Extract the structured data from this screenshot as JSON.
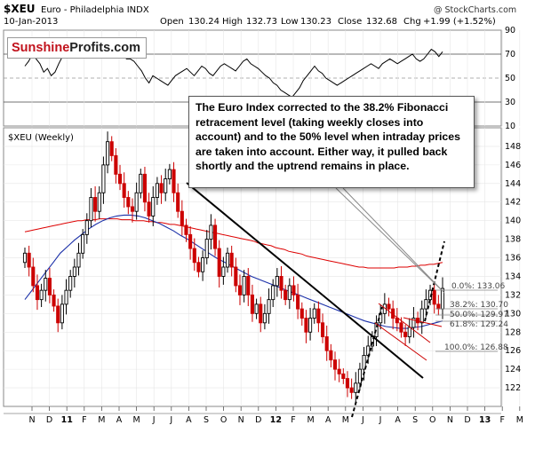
{
  "header": {
    "symbol": "$XEU",
    "name": "Euro - Philadelphia INDX",
    "date": "10-Jan-2013",
    "open_label": "Open",
    "open": "130.24",
    "high_label": "High",
    "high": "132.73",
    "low_label": "Low",
    "low": "130.23",
    "close_label": "Close",
    "close": "132.68",
    "chg_label": "Chg",
    "chg": "+1.99 (+1.52%)",
    "watermark": "@ StockCharts.com"
  },
  "logo": {
    "part1": "Sunshine",
    "part2": "Profits",
    "part3": ".com"
  },
  "callout": "The Euro Index corrected to the 38.2% Fibonacci retracement level (taking weekly closes into account) and to the 50% level when intraday prices are taken into account. Either way, it pulled back shortly and the uptrend remains in place.",
  "main_label": "$XEU (Weekly)",
  "fib_labels": [
    "0.0%: 133.06",
    "38.2%: 130.70",
    "50.0%: 129.97",
    "61.8%: 129.24",
    "100.0%: 126.88"
  ],
  "colors": {
    "up": "#000000",
    "down": "#cc0000",
    "ma_red": "#dd0000",
    "ma_blue": "#1a2fa8",
    "rsi_line": "#000000"
  },
  "chart_data": [
    {
      "type": "line",
      "title": "",
      "x_ticks": [
        "N",
        "D",
        "11",
        "F",
        "M",
        "A",
        "M",
        "J",
        "J",
        "A",
        "S",
        "O",
        "N",
        "D",
        "12",
        "F",
        "M",
        "A",
        "M",
        "J",
        "J",
        "A",
        "S",
        "O",
        "N",
        "D",
        "13",
        "F",
        "M"
      ],
      "ylim": [
        10,
        90
      ],
      "y_ticks": [
        10,
        30,
        50,
        70,
        90
      ],
      "reference_lines": [
        30,
        50,
        70
      ],
      "series": [
        {
          "values": [
            60,
            64,
            70,
            66,
            62,
            55,
            58,
            52,
            55,
            62,
            68,
            72,
            74,
            76,
            72,
            74,
            78,
            80,
            78,
            76,
            78,
            75,
            74,
            80,
            78,
            72,
            70,
            66,
            66,
            64,
            60,
            56,
            50,
            46,
            52,
            50,
            48,
            46,
            44,
            48,
            52,
            54,
            56,
            58,
            55,
            52,
            56,
            60,
            58,
            54,
            52,
            56,
            60,
            62,
            60,
            58,
            56,
            60,
            64,
            66,
            62,
            60,
            58,
            55,
            52,
            50,
            46,
            44,
            40,
            38,
            36,
            34,
            38,
            42,
            48,
            52,
            56,
            60,
            56,
            54,
            50,
            48,
            46,
            44,
            46,
            48,
            50,
            52,
            54,
            56,
            58,
            60,
            62,
            60,
            58,
            62,
            64,
            66,
            64,
            62,
            64,
            66,
            68,
            70,
            66,
            64,
            66,
            70,
            74,
            72,
            68,
            72
          ]
        }
      ]
    },
    {
      "type": "line",
      "title": "",
      "x_ticks": [
        "N",
        "D",
        "11",
        "F",
        "M",
        "A",
        "M",
        "J",
        "J",
        "A",
        "S",
        "O",
        "N",
        "D",
        "12",
        "F",
        "M",
        "A",
        "M",
        "J",
        "J",
        "A",
        "S",
        "O",
        "N",
        "D",
        "13",
        "F",
        "M"
      ],
      "ylim": [
        120,
        150
      ],
      "y_ticks": [
        122,
        124,
        126,
        128,
        130,
        132,
        134,
        136,
        138,
        140,
        142,
        144,
        146,
        148
      ],
      "annotations": [
        "0.0%: 133.06",
        "38.2%: 130.70",
        "50.0%: 129.97",
        "61.8%: 129.24",
        "100.0%: 126.88"
      ],
      "series": [
        {
          "values": [
            136.5,
            135,
            133,
            131.5,
            132.5,
            133.8,
            132,
            130.8,
            129,
            131,
            132.5,
            134,
            135,
            136.5,
            138.5,
            140,
            142.5,
            141,
            143,
            146,
            148.5,
            147,
            145,
            144,
            142.5,
            141.5,
            141,
            143,
            145,
            142,
            140.5,
            142.5,
            144,
            143,
            144.5,
            145.5,
            143,
            141,
            139.5,
            138.5,
            137,
            135.5,
            134.5,
            136,
            138,
            139.5,
            137,
            134,
            135,
            136.5,
            135,
            133,
            132,
            134,
            132,
            130,
            131,
            129,
            130,
            131.5,
            133,
            134,
            132.5,
            131.5,
            133,
            132,
            130.5,
            129.5,
            128,
            129.5,
            130.5,
            129,
            127.5,
            126,
            125,
            124,
            123.5,
            123,
            122,
            121.5,
            122.5,
            124,
            125.5,
            126.5,
            127.5,
            129,
            130,
            131,
            130.5,
            129.5,
            129,
            128,
            127.5,
            128.5,
            129.5,
            129,
            130.5,
            131.5,
            132.5,
            131,
            130.5,
            132.7
          ]
        },
        {
          "values": [
            138.8,
            138.9,
            139.0,
            139.1,
            139.2,
            139.3,
            139.4,
            139.5,
            139.6,
            139.7,
            139.8,
            139.9,
            140.0,
            140.0,
            140.1,
            140.1,
            140.1,
            140.2,
            140.2,
            140.2,
            140.2,
            140.2,
            140.1,
            140.1,
            140.1,
            140.0,
            140.0,
            140.0,
            139.9,
            139.9,
            139.8,
            139.8,
            139.7,
            139.6,
            139.6,
            139.5,
            139.4,
            139.3,
            139.2,
            139.1,
            139.0,
            138.9,
            138.8,
            138.7,
            138.6,
            138.5,
            138.4,
            138.3,
            138.2,
            138.1,
            138.0,
            137.9,
            137.8,
            137.6,
            137.5,
            137.4,
            137.3,
            137.1,
            137.0,
            136.9,
            136.7,
            136.6,
            136.5,
            136.4,
            136.2,
            136.1,
            136.0,
            135.9,
            135.8,
            135.7,
            135.6,
            135.5,
            135.4,
            135.3,
            135.2,
            135.1,
            135.0,
            135.0,
            134.9,
            134.9,
            134.9,
            134.9,
            134.9,
            134.9,
            134.9,
            135.0,
            135.0,
            135.0,
            135.1,
            135.1,
            135.2,
            135.2,
            135.3,
            135.3,
            135.4,
            135.5
          ],
          "name": ""
        },
        {
          "values": [
            131.5,
            132.5,
            133.5,
            134.5,
            135.5,
            136.5,
            137.2,
            137.9,
            138.5,
            139.1,
            139.6,
            140.0,
            140.3,
            140.5,
            140.6,
            140.6,
            140.5,
            140.3,
            140.0,
            139.7,
            139.3,
            138.9,
            138.4,
            138.0,
            137.5,
            137.0,
            136.5,
            136.0,
            135.6,
            135.2,
            134.8,
            134.4,
            134.0,
            133.7,
            133.4,
            133.1,
            132.8,
            132.5,
            132.2,
            131.9,
            131.6,
            131.3,
            131.0,
            130.7,
            130.4,
            130.1,
            129.8,
            129.5,
            129.2,
            129.0,
            128.8,
            128.6,
            128.5,
            128.4,
            128.4,
            128.5,
            128.6,
            128.8,
            129.0,
            129.2
          ],
          "name": ""
        }
      ]
    }
  ]
}
